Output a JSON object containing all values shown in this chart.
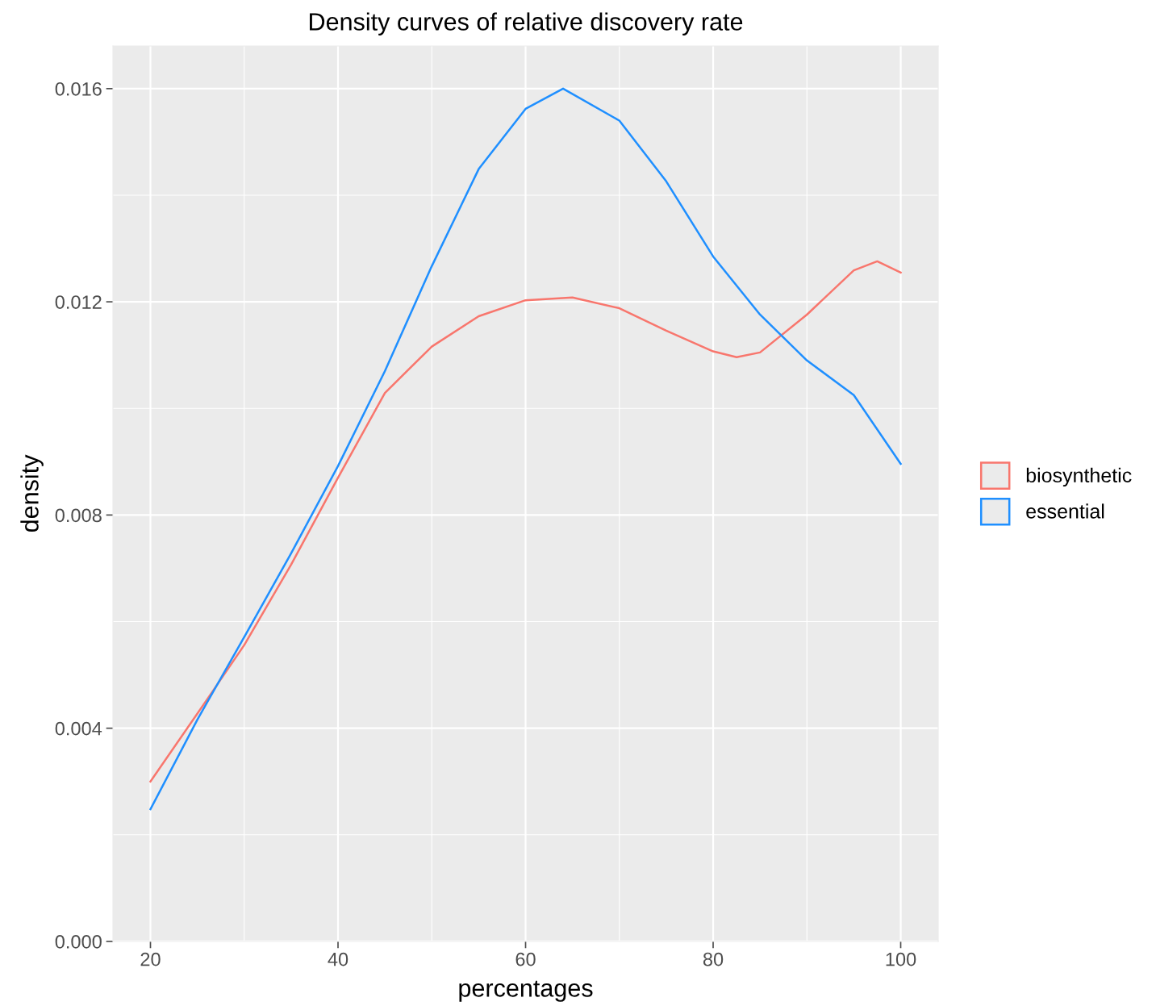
{
  "chart_data": {
    "type": "line",
    "title": "Density curves of relative discovery rate",
    "xlabel": "percentages",
    "ylabel": "density",
    "xlim": [
      16,
      104
    ],
    "xticks": [
      20,
      40,
      60,
      80,
      100
    ],
    "ylim": [
      0,
      0.0168
    ],
    "yticks": [
      {
        "value": 0,
        "label": "0.000"
      },
      {
        "value": 0.004,
        "label": "0.004"
      },
      {
        "value": 0.008,
        "label": "0.008"
      },
      {
        "value": 0.012,
        "label": "0.012"
      },
      {
        "value": 0.016,
        "label": "0.016"
      }
    ],
    "grid": true,
    "legend": "right",
    "marker": "none",
    "line_style": "solid",
    "series": [
      {
        "name": "biosynthetic",
        "color": "#f8766d",
        "x": [
          20,
          26,
          30,
          35,
          40,
          45,
          50,
          55,
          60,
          65,
          70,
          75,
          80,
          82.5,
          85,
          90,
          95,
          97.5,
          100
        ],
        "values": [
          0.003,
          0.00453,
          0.00556,
          0.00707,
          0.0087,
          0.01029,
          0.01116,
          0.01173,
          0.01203,
          0.01208,
          0.01188,
          0.01146,
          0.01107,
          0.01096,
          0.01105,
          0.01176,
          0.01259,
          0.01276,
          0.01255
        ]
      },
      {
        "name": "essential",
        "color": "#1f8fff",
        "x": [
          20,
          25,
          30,
          35,
          40,
          45,
          50,
          55,
          60,
          64,
          70,
          75,
          80,
          85,
          90,
          95,
          100
        ],
        "values": [
          0.00248,
          0.00416,
          0.00571,
          0.00728,
          0.00892,
          0.0107,
          0.01267,
          0.01449,
          0.01562,
          0.016,
          0.0154,
          0.01426,
          0.01285,
          0.01176,
          0.0109,
          0.01025,
          0.00896
        ]
      }
    ]
  }
}
